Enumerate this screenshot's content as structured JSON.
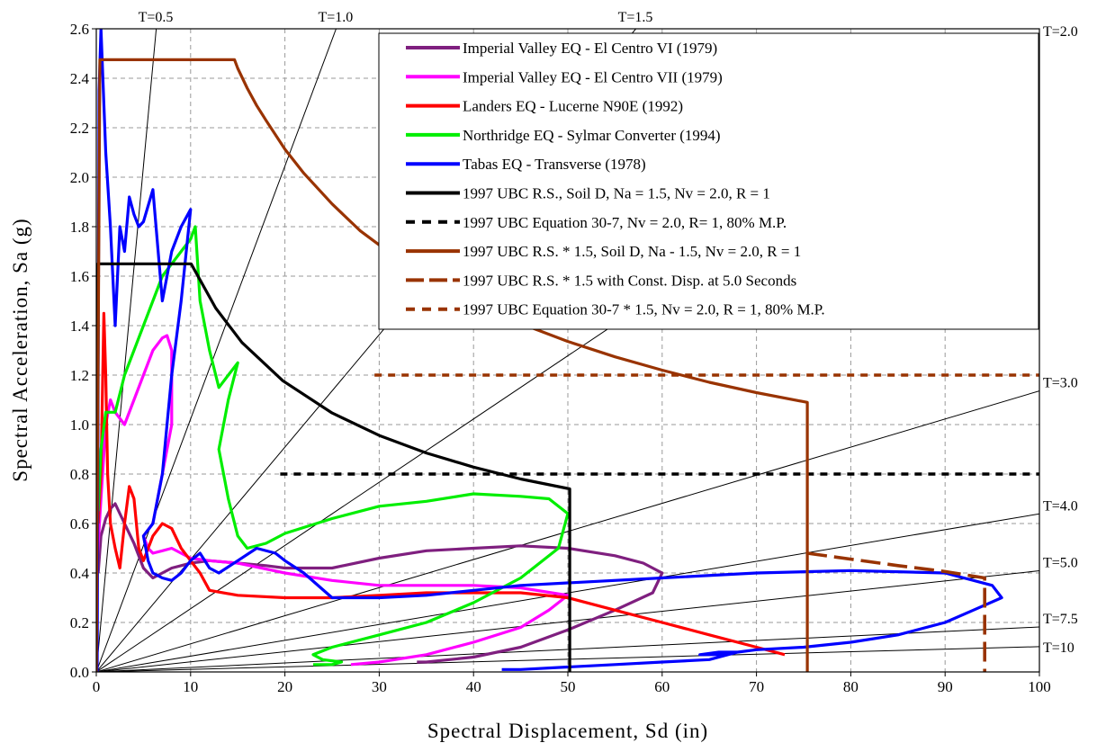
{
  "chart_data": {
    "type": "line",
    "xlabel": "Spectral Displacement, Sd (in)",
    "ylabel": "Spectral Acceleration, Sa (g)",
    "xlim": [
      0,
      100
    ],
    "ylim": [
      0,
      2.6
    ],
    "xticks": [
      "0",
      "10",
      "20",
      "30",
      "40",
      "50",
      "60",
      "70",
      "80",
      "90",
      "100"
    ],
    "yticks": [
      "0.0",
      "0.2",
      "0.4",
      "0.6",
      "0.8",
      "1.0",
      "1.2",
      "1.4",
      "1.6",
      "1.8",
      "2.0",
      "2.2",
      "2.4",
      "2.6"
    ],
    "grid": true,
    "legend_position": "top-right",
    "period_lines": [
      {
        "label": "T=0.5",
        "T": 0.5
      },
      {
        "label": "T=1.0",
        "T": 1.0
      },
      {
        "label": "T=1.5",
        "T": 1.5
      },
      {
        "label": "T=2.0",
        "T": 2.0
      },
      {
        "label": "T=3.0",
        "T": 3.0
      },
      {
        "label": "T=4.0",
        "T": 4.0
      },
      {
        "label": "T=5.0",
        "T": 5.0
      },
      {
        "label": "T=7.5",
        "T": 7.5
      },
      {
        "label": "T=10",
        "T": 10
      }
    ],
    "series": [
      {
        "name": "Imperial Valley EQ - El Centro VI (1979)",
        "color": "#7f1f7f",
        "style": "solid",
        "x": [
          0.2,
          0.5,
          1,
          1.5,
          2,
          3,
          4,
          5,
          6,
          7,
          8,
          9,
          10,
          12,
          15,
          18,
          20,
          22,
          25,
          30,
          35,
          40,
          45,
          50,
          55,
          58,
          60,
          59,
          55,
          50,
          45,
          40,
          35,
          34
        ],
        "y": [
          0.4,
          0.55,
          0.62,
          0.66,
          0.68,
          0.6,
          0.52,
          0.42,
          0.38,
          0.4,
          0.42,
          0.43,
          0.44,
          0.45,
          0.44,
          0.43,
          0.42,
          0.42,
          0.42,
          0.46,
          0.49,
          0.5,
          0.51,
          0.5,
          0.47,
          0.44,
          0.4,
          0.32,
          0.25,
          0.17,
          0.1,
          0.06,
          0.04,
          0.04
        ]
      },
      {
        "name": "Imperial Valley EQ - El Centro VII (1979)",
        "color": "#ff00ff",
        "style": "solid",
        "x": [
          0.1,
          0.5,
          1,
          1.5,
          2,
          3,
          4,
          5,
          6,
          7,
          7.5,
          8,
          8,
          7,
          6,
          5,
          5.5,
          6,
          7,
          8,
          9,
          10,
          12,
          15,
          20,
          25,
          30,
          35,
          40,
          45,
          50,
          48,
          45,
          40,
          35,
          30,
          27
        ],
        "y": [
          0.45,
          0.7,
          1.0,
          1.1,
          1.05,
          1.0,
          1.1,
          1.2,
          1.3,
          1.35,
          1.36,
          1.3,
          1.0,
          0.8,
          0.6,
          0.55,
          0.5,
          0.48,
          0.49,
          0.5,
          0.48,
          0.46,
          0.45,
          0.44,
          0.4,
          0.37,
          0.35,
          0.35,
          0.35,
          0.34,
          0.31,
          0.25,
          0.18,
          0.12,
          0.07,
          0.04,
          0.03
        ]
      },
      {
        "name": "Landers EQ - Lucerne N90E (1992)",
        "color": "#ff0000",
        "style": "solid",
        "x": [
          0.2,
          0.5,
          0.8,
          1,
          1.2,
          1.5,
          2,
          2.5,
          3,
          3.5,
          4,
          4.5,
          5,
          6,
          7,
          8,
          9,
          10,
          11,
          12,
          15,
          20,
          25,
          30,
          35,
          40,
          45,
          50,
          55,
          60,
          65,
          70,
          73
        ],
        "y": [
          0.6,
          0.8,
          1.45,
          1.2,
          0.8,
          0.6,
          0.5,
          0.42,
          0.6,
          0.75,
          0.7,
          0.5,
          0.45,
          0.55,
          0.6,
          0.58,
          0.5,
          0.45,
          0.4,
          0.33,
          0.31,
          0.3,
          0.3,
          0.31,
          0.32,
          0.32,
          0.32,
          0.3,
          0.25,
          0.2,
          0.15,
          0.1,
          0.07
        ]
      },
      {
        "name": "Northridge EQ - Sylmar Converter (1994)",
        "color": "#00ee00",
        "style": "solid",
        "x": [
          0.2,
          0.5,
          1,
          2,
          3,
          4,
          5,
          6,
          7,
          8,
          9,
          10,
          10.5,
          11,
          12,
          13,
          14,
          15,
          14,
          13,
          14,
          15,
          16,
          18,
          20,
          25,
          30,
          35,
          40,
          45,
          48,
          50,
          49,
          45,
          40,
          35,
          30,
          27,
          25,
          23,
          24,
          26,
          25,
          23
        ],
        "y": [
          0.65,
          0.9,
          1.05,
          1.05,
          1.2,
          1.3,
          1.4,
          1.5,
          1.6,
          1.65,
          1.7,
          1.75,
          1.8,
          1.5,
          1.3,
          1.15,
          1.2,
          1.25,
          1.1,
          0.9,
          0.7,
          0.55,
          0.5,
          0.52,
          0.56,
          0.62,
          0.67,
          0.69,
          0.72,
          0.71,
          0.7,
          0.64,
          0.5,
          0.38,
          0.28,
          0.2,
          0.15,
          0.12,
          0.1,
          0.07,
          0.05,
          0.04,
          0.03,
          0.03
        ]
      },
      {
        "name": "Tabas EQ - Transverse (1978)",
        "color": "#0000ff",
        "style": "solid",
        "x": [
          0.1,
          0.3,
          0.5,
          1,
          1.5,
          2,
          2.5,
          3,
          3.5,
          4,
          4.5,
          5,
          6,
          7,
          8,
          9,
          10,
          9,
          8,
          7,
          6,
          5,
          5.5,
          6,
          7,
          8,
          9,
          10,
          11,
          12,
          13,
          15,
          17,
          19,
          20,
          22,
          25,
          30,
          35,
          40,
          45,
          50,
          60,
          70,
          80,
          90,
          95,
          96,
          93,
          90,
          85,
          80,
          75,
          70,
          68,
          66,
          64,
          66,
          68,
          65,
          60,
          55,
          50,
          45,
          43
        ],
        "y": [
          0.0,
          2.35,
          2.6,
          2.1,
          1.8,
          1.4,
          1.8,
          1.7,
          1.92,
          1.85,
          1.8,
          1.82,
          1.95,
          1.5,
          1.7,
          1.8,
          1.87,
          1.5,
          1.2,
          0.8,
          0.6,
          0.55,
          0.45,
          0.4,
          0.38,
          0.37,
          0.4,
          0.45,
          0.48,
          0.42,
          0.4,
          0.45,
          0.5,
          0.48,
          0.45,
          0.4,
          0.3,
          0.3,
          0.31,
          0.33,
          0.35,
          0.36,
          0.38,
          0.4,
          0.41,
          0.4,
          0.35,
          0.3,
          0.25,
          0.2,
          0.15,
          0.12,
          0.1,
          0.09,
          0.08,
          0.07,
          0.07,
          0.08,
          0.08,
          0.05,
          0.04,
          0.03,
          0.02,
          0.01,
          0.01
        ]
      },
      {
        "name": "1997 UBC R.S., Soil D, Na = 1.5, Nv = 2.0, R = 1",
        "color": "#000000",
        "style": "solid",
        "x": [
          0,
          0.19,
          10.06,
          12.66,
          15.44,
          19.78,
          25,
          30,
          35,
          40,
          45,
          50.2,
          50.2
        ],
        "y": [
          0,
          1.65,
          1.65,
          1.471,
          1.332,
          1.177,
          1.047,
          0.956,
          0.885,
          0.828,
          0.78,
          0.74,
          0.0
        ]
      },
      {
        "name": "1997 UBC Equation 30-7, Nv = 2.0, R= 1, 80% M.P.",
        "color": "#000000",
        "style": "dotted",
        "x": [
          19.5,
          100
        ],
        "y": [
          0.8,
          0.8
        ]
      },
      {
        "name": "1997 UBC R.S. * 1.5, Soil D, Na - 1.5, Nv = 2.0, R = 1",
        "color": "#993300",
        "style": "solid",
        "x": [
          0,
          0.38,
          14.66,
          15,
          16,
          17,
          18,
          20,
          22,
          25,
          28,
          30,
          35,
          40,
          45,
          50,
          55,
          60,
          65,
          70,
          75.39,
          75.39
        ],
        "y": [
          0,
          2.475,
          2.475,
          2.44,
          2.36,
          2.29,
          2.23,
          2.113,
          2.016,
          1.892,
          1.783,
          1.726,
          1.597,
          1.494,
          1.408,
          1.336,
          1.274,
          1.22,
          1.171,
          1.129,
          1.09,
          0.0
        ]
      },
      {
        "name": "1997 UBC R.S. * 1.5 with Const. Disp. at 5.0 Seconds",
        "color": "#993300",
        "style": "dashed",
        "x": [
          75.39,
          80,
          85,
          90,
          94.2,
          94.2
        ],
        "y": [
          0.48,
          0.456,
          0.43,
          0.406,
          0.38,
          0.0
        ]
      },
      {
        "name": "1997 UBC Equation 30-7 * 1.5, Nv = 2.0, R = 1, 80% M.P.",
        "color": "#993300",
        "style": "dotted",
        "x": [
          29.5,
          100
        ],
        "y": [
          1.2,
          1.2
        ]
      }
    ]
  }
}
